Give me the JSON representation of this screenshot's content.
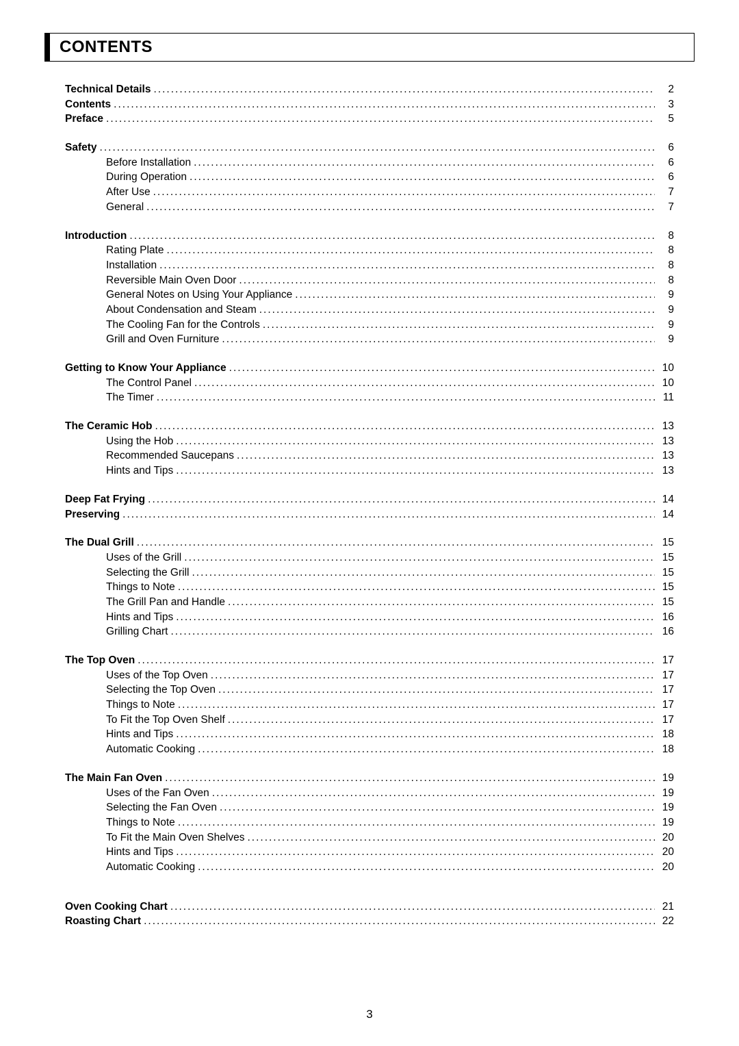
{
  "header": {
    "title": "CONTENTS"
  },
  "pageNumber": "3",
  "groups": [
    {
      "items": [
        {
          "label": "Technical Details",
          "page": "2",
          "bold": true,
          "sub": false
        },
        {
          "label": "Contents",
          "page": "3",
          "bold": true,
          "sub": false
        },
        {
          "label": "Preface",
          "page": "5",
          "bold": true,
          "sub": false
        }
      ]
    },
    {
      "items": [
        {
          "label": "Safety",
          "page": "6",
          "bold": true,
          "sub": false
        },
        {
          "label": "Before Installation",
          "page": "6",
          "bold": false,
          "sub": true
        },
        {
          "label": "During Operation",
          "page": "6",
          "bold": false,
          "sub": true
        },
        {
          "label": "After Use",
          "page": "7",
          "bold": false,
          "sub": true
        },
        {
          "label": "General",
          "page": "7",
          "bold": false,
          "sub": true
        }
      ]
    },
    {
      "items": [
        {
          "label": "Introduction",
          "page": "8",
          "bold": true,
          "sub": false
        },
        {
          "label": "Rating Plate",
          "page": "8",
          "bold": false,
          "sub": true
        },
        {
          "label": "Installation",
          "page": "8",
          "bold": false,
          "sub": true
        },
        {
          "label": "Reversible Main Oven Door",
          "page": "8",
          "bold": false,
          "sub": true
        },
        {
          "label": "General Notes on Using Your Appliance",
          "page": "9",
          "bold": false,
          "sub": true
        },
        {
          "label": "About Condensation and Steam",
          "page": "9",
          "bold": false,
          "sub": true
        },
        {
          "label": "The Cooling Fan for the Controls",
          "page": "9",
          "bold": false,
          "sub": true
        },
        {
          "label": "Grill and Oven Furniture",
          "page": "9",
          "bold": false,
          "sub": true
        }
      ]
    },
    {
      "items": [
        {
          "label": "Getting to Know Your Appliance",
          "page": "10",
          "bold": true,
          "sub": false
        },
        {
          "label": "The Control Panel",
          "page": "10",
          "bold": false,
          "sub": true
        },
        {
          "label": "The Timer",
          "page": "11",
          "bold": false,
          "sub": true
        }
      ]
    },
    {
      "items": [
        {
          "label": "The Ceramic Hob",
          "page": "13",
          "bold": true,
          "sub": false
        },
        {
          "label": "Using the Hob",
          "page": "13",
          "bold": false,
          "sub": true
        },
        {
          "label": "Recommended Saucepans",
          "page": "13",
          "bold": false,
          "sub": true
        },
        {
          "label": "Hints and Tips",
          "page": "13",
          "bold": false,
          "sub": true
        }
      ]
    },
    {
      "items": [
        {
          "label": "Deep Fat Frying",
          "page": "14",
          "bold": true,
          "sub": false
        },
        {
          "label": "Preserving",
          "page": "14",
          "bold": true,
          "sub": false
        }
      ]
    },
    {
      "items": [
        {
          "label": "The Dual Grill",
          "page": "15",
          "bold": true,
          "sub": false
        },
        {
          "label": "Uses of the Grill",
          "page": "15",
          "bold": false,
          "sub": true
        },
        {
          "label": "Selecting the Grill",
          "page": "15",
          "bold": false,
          "sub": true
        },
        {
          "label": "Things to Note",
          "page": "15",
          "bold": false,
          "sub": true
        },
        {
          "label": "The Grill Pan and Handle",
          "page": "15",
          "bold": false,
          "sub": true
        },
        {
          "label": "Hints and Tips",
          "page": "16",
          "bold": false,
          "sub": true
        },
        {
          "label": "Grilling Chart",
          "page": "16",
          "bold": false,
          "sub": true
        }
      ]
    },
    {
      "items": [
        {
          "label": "The Top Oven",
          "page": "17",
          "bold": true,
          "sub": false
        },
        {
          "label": "Uses of the Top Oven",
          "page": "17",
          "bold": false,
          "sub": true
        },
        {
          "label": "Selecting the Top Oven",
          "page": "17",
          "bold": false,
          "sub": true
        },
        {
          "label": "Things to Note",
          "page": "17",
          "bold": false,
          "sub": true
        },
        {
          "label": "To Fit the Top Oven Shelf",
          "page": "17",
          "bold": false,
          "sub": true
        },
        {
          "label": "Hints and Tips",
          "page": "18",
          "bold": false,
          "sub": true
        },
        {
          "label": "Automatic Cooking",
          "page": "18",
          "bold": false,
          "sub": true
        }
      ]
    },
    {
      "items": [
        {
          "label": "The Main Fan Oven",
          "page": "19",
          "bold": true,
          "sub": false
        },
        {
          "label": "Uses of the Fan Oven",
          "page": "19",
          "bold": false,
          "sub": true
        },
        {
          "label": "Selecting the Fan Oven",
          "page": "19",
          "bold": false,
          "sub": true
        },
        {
          "label": "Things to Note",
          "page": "19",
          "bold": false,
          "sub": true
        },
        {
          "label": "To Fit the Main Oven Shelves",
          "page": "20",
          "bold": false,
          "sub": true
        },
        {
          "label": "Hints and Tips",
          "page": "20",
          "bold": false,
          "sub": true
        },
        {
          "label": "Automatic Cooking",
          "page": "20",
          "bold": false,
          "sub": true
        }
      ]
    },
    {
      "items": [
        {
          "label": "Oven Cooking Chart",
          "page": "21",
          "bold": true,
          "sub": false
        },
        {
          "label": "Roasting Chart",
          "page": "22",
          "bold": true,
          "sub": false
        }
      ]
    }
  ]
}
